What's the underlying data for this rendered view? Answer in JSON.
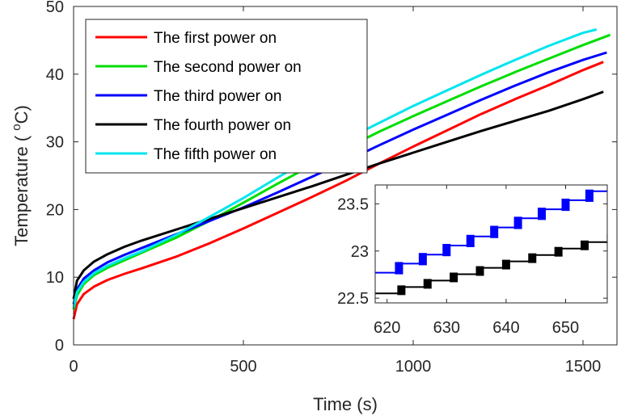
{
  "chart_data": [
    {
      "type": "line",
      "xlabel": "Time (s)",
      "ylabel": "Temperature ( oC)",
      "ylabel_parts": {
        "prefix": "Temperature ( ",
        "sup": "o",
        "suffix": "C)"
      },
      "xlim": [
        0,
        1600
      ],
      "ylim": [
        0,
        50
      ],
      "xticks": [
        0,
        500,
        1000,
        1500
      ],
      "yticks": [
        0,
        10,
        20,
        30,
        40,
        50
      ],
      "grid": false,
      "legend_position": "top-left",
      "series": [
        {
          "name": "The first power on",
          "color": "#ff0000",
          "x": [
            0,
            10,
            30,
            60,
            100,
            150,
            200,
            300,
            400,
            500,
            600,
            700,
            800,
            900,
            1000,
            1100,
            1200,
            1300,
            1400,
            1500,
            1560
          ],
          "y": [
            3.8,
            6.0,
            7.5,
            8.6,
            9.6,
            10.5,
            11.3,
            13.0,
            15.0,
            17.2,
            19.5,
            21.8,
            24.2,
            26.8,
            29.3,
            31.7,
            34.1,
            36.3,
            38.4,
            40.6,
            41.8
          ]
        },
        {
          "name": "The second power on",
          "color": "#00dd00",
          "x": [
            0,
            10,
            30,
            60,
            100,
            150,
            200,
            300,
            400,
            500,
            600,
            700,
            800,
            900,
            1000,
            1100,
            1200,
            1300,
            1400,
            1500,
            1580
          ],
          "y": [
            5.2,
            7.3,
            9.0,
            10.3,
            11.4,
            12.5,
            13.6,
            15.8,
            18.3,
            21.0,
            23.8,
            26.5,
            29.0,
            31.5,
            33.8,
            36.0,
            38.2,
            40.3,
            42.3,
            44.3,
            45.8
          ]
        },
        {
          "name": "The third power on",
          "color": "#0000ff",
          "x": [
            0,
            10,
            30,
            60,
            100,
            150,
            200,
            300,
            400,
            500,
            600,
            700,
            800,
            900,
            1000,
            1100,
            1200,
            1300,
            1400,
            1500,
            1570
          ],
          "y": [
            6.0,
            8.2,
            9.8,
            11.0,
            12.2,
            13.3,
            14.3,
            16.3,
            18.3,
            20.3,
            22.5,
            24.8,
            27.1,
            29.5,
            31.8,
            34.0,
            36.2,
            38.3,
            40.3,
            42.1,
            43.2
          ]
        },
        {
          "name": "The fourth power on",
          "color": "#000000",
          "x": [
            0,
            10,
            30,
            60,
            100,
            150,
            200,
            300,
            400,
            500,
            600,
            700,
            800,
            900,
            1000,
            1100,
            1200,
            1300,
            1400,
            1500,
            1560
          ],
          "y": [
            6.8,
            9.5,
            11.0,
            12.3,
            13.4,
            14.5,
            15.4,
            17.0,
            18.6,
            20.2,
            21.8,
            23.4,
            25.1,
            26.8,
            28.4,
            30.0,
            31.6,
            33.1,
            34.6,
            36.3,
            37.4
          ]
        },
        {
          "name": "The fifth power on",
          "color": "#00e5ee",
          "x": [
            0,
            10,
            30,
            60,
            100,
            150,
            200,
            300,
            400,
            500,
            600,
            700,
            800,
            900,
            1000,
            1100,
            1200,
            1300,
            1400,
            1500,
            1540
          ],
          "y": [
            5.5,
            7.8,
            9.3,
            10.6,
            11.7,
            12.8,
            13.8,
            16.2,
            18.9,
            21.7,
            24.7,
            27.6,
            30.3,
            32.8,
            35.3,
            37.6,
            39.9,
            42.1,
            44.2,
            46.1,
            46.6
          ]
        }
      ]
    },
    {
      "type": "line",
      "role": "inset",
      "xlim": [
        618,
        657
      ],
      "ylim": [
        22.45,
        23.7
      ],
      "xticks": [
        620,
        630,
        640,
        650
      ],
      "yticks": [
        22.5,
        23,
        23.5
      ],
      "ytick_labels": [
        "22.5",
        "23",
        "23.5"
      ],
      "grid": false,
      "series": [
        {
          "color": "#0000ff",
          "step_start_x": 618,
          "step_start_y": 22.77,
          "step_dx": 4.0,
          "step_dy": 0.096,
          "steps": 10
        },
        {
          "color": "#000000",
          "step_start_x": 618,
          "step_start_y": 22.55,
          "step_dx": 4.4,
          "step_dy": 0.068,
          "steps": 9
        }
      ]
    }
  ]
}
